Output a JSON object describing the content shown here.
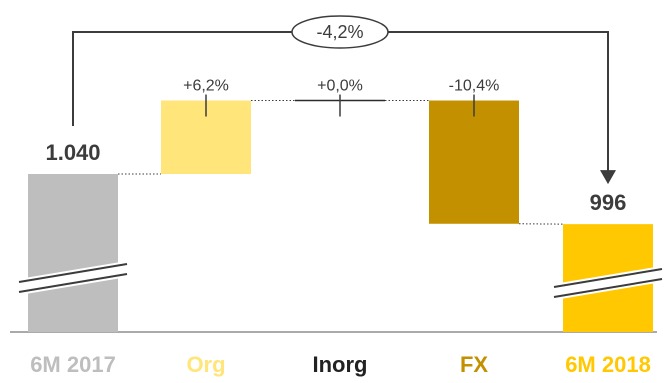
{
  "chart_data": {
    "type": "waterfall",
    "categories": [
      "6M 2017",
      "Org",
      "Inorg",
      "FX",
      "6M 2018"
    ],
    "start_value": 1040,
    "end_value": 996,
    "start_label": "1.040",
    "end_label": "996",
    "changes": [
      {
        "category": "Org",
        "pct": 6.2,
        "label": "+6,2%"
      },
      {
        "category": "Inorg",
        "pct": 0.0,
        "label": "+0,0%"
      },
      {
        "category": "FX",
        "pct": -10.4,
        "label": "-10,4%"
      }
    ],
    "total_change_label": "-4,2%",
    "axis_broken": true,
    "colors": {
      "6M 2017": "#bebebe",
      "Org": "#ffe57a",
      "Inorg": "#2b2b2b",
      "FX": "#c39000",
      "6M 2018": "#ffc800",
      "category_label_6M 2017": "#bebebe",
      "category_label_Org": "#ffe57a",
      "category_label_Inorg": "#222222",
      "category_label_FX": "#c39000",
      "category_label_6M 2018": "#ffc800",
      "connector": "#3c3c3c"
    }
  }
}
